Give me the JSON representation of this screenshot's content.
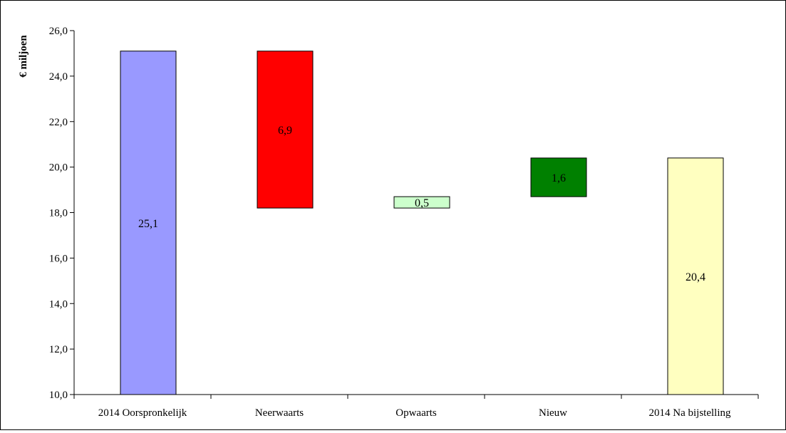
{
  "chart_data": {
    "type": "bar",
    "subtype": "waterfall",
    "title": "",
    "xlabel": "",
    "ylabel": "€ miljoen",
    "ylim": [
      10.0,
      26.0
    ],
    "yticks": [
      "10,0",
      "12,0",
      "14,0",
      "16,0",
      "18,0",
      "20,0",
      "22,0",
      "24,0",
      "26,0"
    ],
    "ytick_values": [
      10,
      12,
      14,
      16,
      18,
      20,
      22,
      24,
      26
    ],
    "grid": false,
    "legend": "none",
    "categories": [
      "2014 Oorspronkelijk",
      "Neerwaarts",
      "Opwaarts",
      "Nieuw",
      "2014 Na bijstelling"
    ],
    "bars": [
      {
        "category": "2014 Oorspronkelijk",
        "bottom": 10.0,
        "top": 25.1,
        "label": "25,1",
        "color": "#9999ff"
      },
      {
        "category": "Neerwaarts",
        "bottom": 18.2,
        "top": 25.1,
        "label": "6,9",
        "color": "#ff0000"
      },
      {
        "category": "Opwaarts",
        "bottom": 18.2,
        "top": 18.7,
        "label": "0,5",
        "color": "#ccffcc"
      },
      {
        "category": "Nieuw",
        "bottom": 18.7,
        "top": 20.4,
        "label": "1,6",
        "color": "#008000"
      },
      {
        "category": "2014 Na bijstelling",
        "bottom": 10.0,
        "top": 20.4,
        "label": "20,4",
        "color": "#ffffc0"
      }
    ]
  }
}
